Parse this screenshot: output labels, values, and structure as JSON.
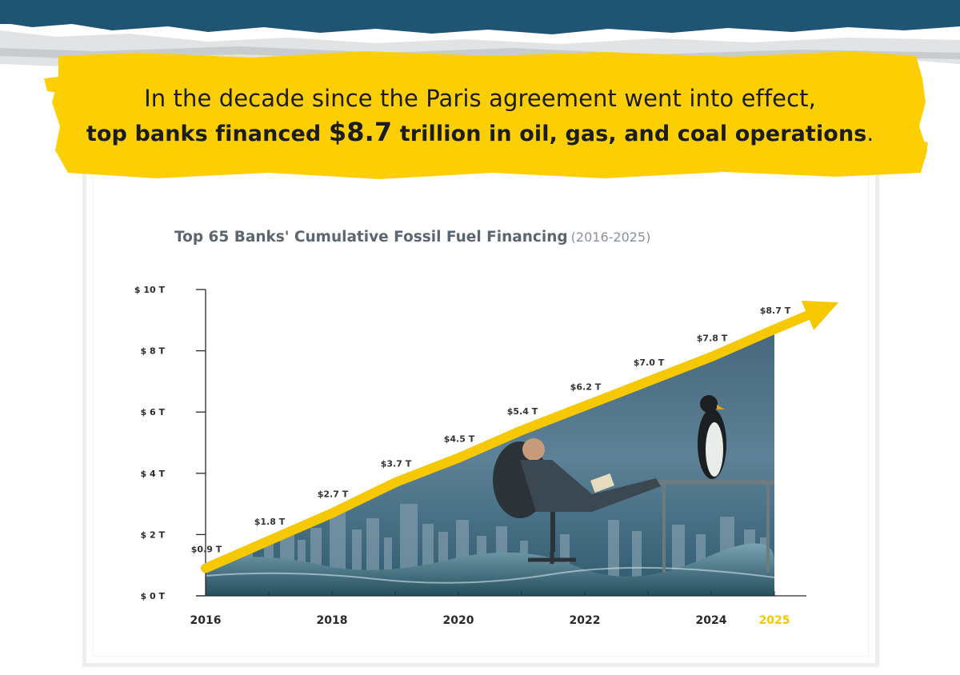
{
  "headline": {
    "line1": "In the decade since the Paris agreement went into effect,",
    "line2_pre": "top banks financed ",
    "line2_amount": "$8.7",
    "line2_post": " trillion in oil, gas, and coal operations",
    "line2_end": "."
  },
  "chart_data": {
    "type": "line",
    "title": "Top 65 Banks' Cumulative Fossil Fuel Financing",
    "subtitle": "(2016-2025)",
    "x": [
      2016,
      2017,
      2018,
      2019,
      2020,
      2021,
      2022,
      2023,
      2024,
      2025
    ],
    "values": [
      0.9,
      1.8,
      2.7,
      3.7,
      4.5,
      5.4,
      6.2,
      7.0,
      7.8,
      8.7
    ],
    "data_labels": [
      "$0.9 T",
      "$1.8 T",
      "$2.7 T",
      "$3.7 T",
      "$4.5 T",
      "$5.4 T",
      "$6.2 T",
      "$7.0 T",
      "$7.8 T",
      "$8.7 T"
    ],
    "x_tick_labels": [
      "2016",
      "2018",
      "2020",
      "2022",
      "2024",
      "2025"
    ],
    "x_tick_values": [
      2016,
      2018,
      2020,
      2022,
      2024,
      2025
    ],
    "highlight_tick": "2025",
    "y_ticks": [
      0,
      2,
      4,
      6,
      8,
      10
    ],
    "y_tick_labels": [
      "$ 0 T",
      "$ 2 T",
      "$ 4 T",
      "$ 6 T",
      "$ 8 T",
      "$ 10 T"
    ],
    "ylim": [
      0,
      10
    ],
    "xlim": [
      2016,
      2025
    ],
    "grid": false,
    "line_color": "#f5c800",
    "highlight_color": "#f5c800"
  },
  "colors": {
    "band": "#1f5573",
    "banner": "#fccf04",
    "text": "#1c1c1c",
    "axis": "#2a2a2a"
  }
}
